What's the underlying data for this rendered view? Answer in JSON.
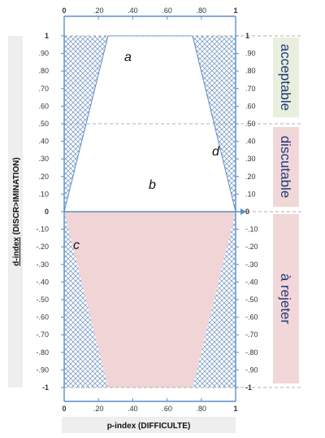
{
  "diagram": {
    "x_axis_title": "p-index (DIFFICULTE)",
    "y_axis_title_prefix": "d-index",
    "y_axis_title_suffix": " (DISCR>IMINATION)",
    "x_ticks": [
      "0",
      ".20",
      ".40",
      ".60",
      ".80",
      "1"
    ],
    "y_ticks_left": [
      "1",
      ".90",
      ".80",
      ".70",
      ".60",
      ".50",
      ".40",
      ".30",
      ".20",
      ".10",
      "0",
      "-.10",
      "-.20",
      "-.30",
      "-.40",
      "-.50",
      "-.60",
      "-.70",
      "-.80",
      "-.90",
      "-1"
    ],
    "y_ticks_right": [
      "1",
      ".90",
      ".80",
      ".70",
      ".60",
      ".50",
      ".40",
      ".30",
      ".20",
      ".10",
      "0",
      "-.10",
      "-.20",
      "-.30",
      "-.40",
      "-.50",
      "-.60",
      "-.70",
      "-.80",
      "-.90",
      "-1"
    ],
    "regions": [
      {
        "letter": "a"
      },
      {
        "letter": "b"
      },
      {
        "letter": "c"
      },
      {
        "letter": "d"
      }
    ],
    "zones": [
      {
        "label": "acceptable",
        "color": "#e9eedd"
      },
      {
        "label": "discutable",
        "color": "#f2d7d8"
      },
      {
        "label": "à rejeter",
        "color": "#f2d7d8"
      }
    ],
    "colors": {
      "axis": "#5b8fc7",
      "hatch": "#6b8fbe",
      "lower_fill": "#f0d4d6",
      "title_band": "#eeeeee",
      "underline": "#cc0000"
    }
  }
}
